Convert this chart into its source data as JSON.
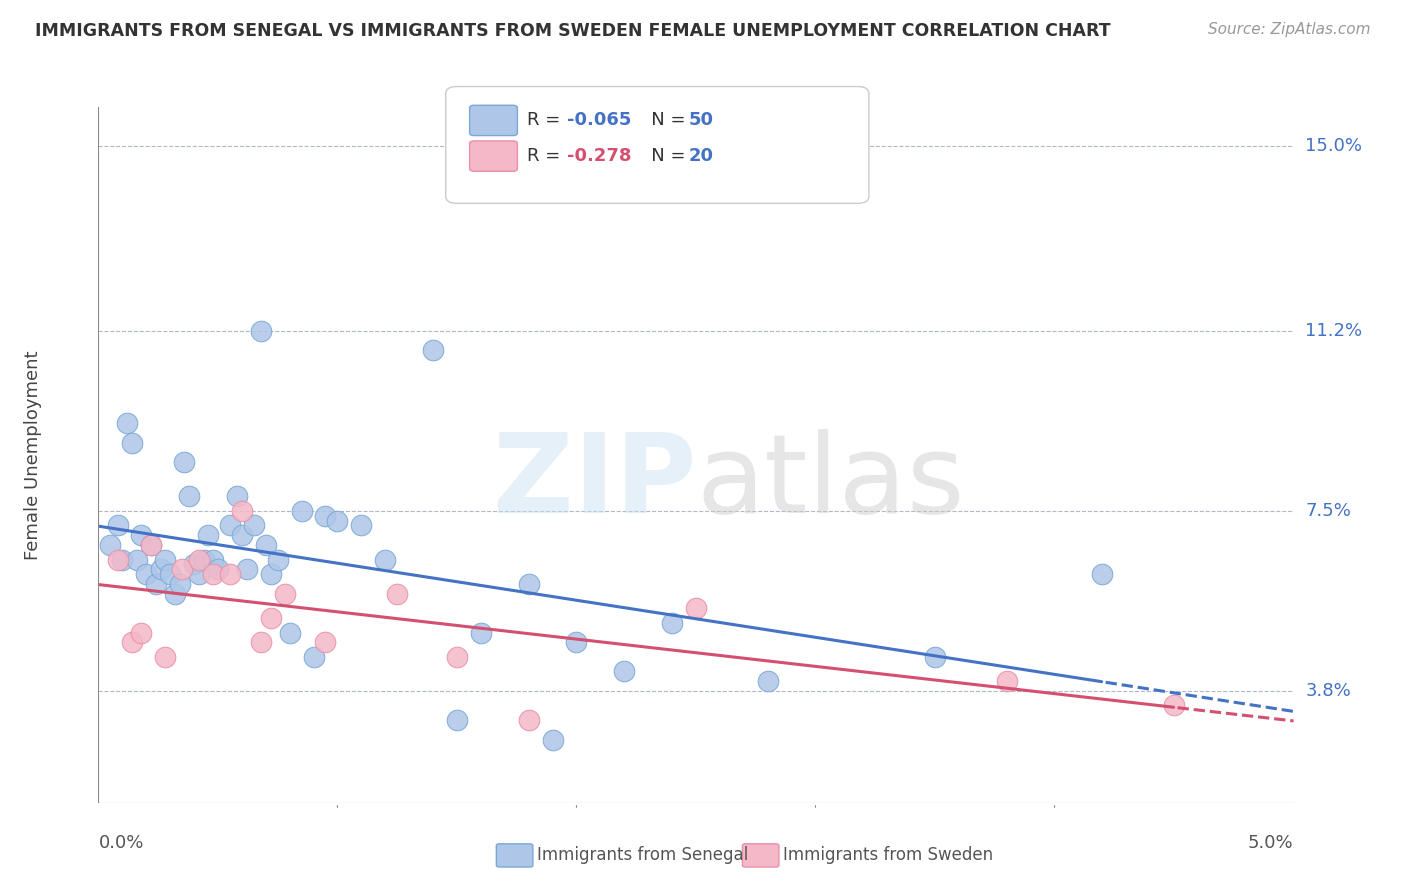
{
  "title": "IMMIGRANTS FROM SENEGAL VS IMMIGRANTS FROM SWEDEN FEMALE UNEMPLOYMENT CORRELATION CHART",
  "source": "Source: ZipAtlas.com",
  "ylabel": "Female Unemployment",
  "yticks": [
    3.8,
    7.5,
    11.2,
    15.0
  ],
  "ytick_labels": [
    "3.8%",
    "7.5%",
    "11.2%",
    "15.0%"
  ],
  "xmin": 0.0,
  "xmax": 5.0,
  "ymin": 1.5,
  "ymax": 15.8,
  "senegal_R": -0.065,
  "senegal_N": 50,
  "sweden_R": -0.278,
  "sweden_N": 20,
  "senegal_color": "#aec6e8",
  "sweden_color": "#f4b8c8",
  "senegal_edge_color": "#7aa8d4",
  "sweden_edge_color": "#e890a8",
  "senegal_line_color": "#4472c4",
  "sweden_line_color": "#d45070",
  "senegal_x": [
    0.05,
    0.08,
    0.1,
    0.12,
    0.14,
    0.16,
    0.18,
    0.2,
    0.22,
    0.24,
    0.26,
    0.28,
    0.3,
    0.32,
    0.34,
    0.36,
    0.38,
    0.4,
    0.42,
    0.44,
    0.46,
    0.48,
    0.5,
    0.55,
    0.58,
    0.6,
    0.62,
    0.65,
    0.68,
    0.7,
    0.72,
    0.75,
    0.8,
    0.85,
    0.9,
    0.95,
    1.0,
    1.1,
    1.2,
    1.4,
    1.5,
    1.6,
    1.8,
    1.9,
    2.0,
    2.2,
    2.4,
    2.8,
    3.5,
    4.2
  ],
  "senegal_y": [
    6.8,
    7.2,
    6.5,
    9.3,
    8.9,
    6.5,
    7.0,
    6.2,
    6.8,
    6.0,
    6.3,
    6.5,
    6.2,
    5.8,
    6.0,
    8.5,
    7.8,
    6.4,
    6.2,
    6.5,
    7.0,
    6.5,
    6.3,
    7.2,
    7.8,
    7.0,
    6.3,
    7.2,
    11.2,
    6.8,
    6.2,
    6.5,
    5.0,
    7.5,
    4.5,
    7.4,
    7.3,
    7.2,
    6.5,
    10.8,
    3.2,
    5.0,
    6.0,
    2.8,
    4.8,
    4.2,
    5.2,
    4.0,
    4.5,
    6.2
  ],
  "sweden_x": [
    0.08,
    0.14,
    0.18,
    0.22,
    0.28,
    0.35,
    0.42,
    0.48,
    0.55,
    0.6,
    0.68,
    0.72,
    0.78,
    0.95,
    1.25,
    1.5,
    1.8,
    2.5,
    3.8,
    4.5
  ],
  "sweden_y": [
    6.5,
    4.8,
    5.0,
    6.8,
    4.5,
    6.3,
    6.5,
    6.2,
    6.2,
    7.5,
    4.8,
    5.3,
    5.8,
    4.8,
    5.8,
    4.5,
    3.2,
    5.5,
    4.0,
    3.5
  ]
}
